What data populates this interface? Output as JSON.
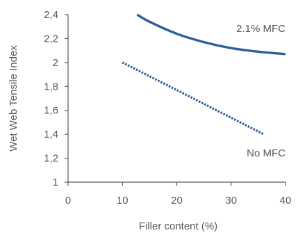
{
  "chart_data": {
    "type": "line",
    "xlabel": "Filler content (%)",
    "ylabel": "Wet Web Tensile Index",
    "xlim": [
      0,
      40
    ],
    "ylim": [
      1,
      2.4
    ],
    "x_ticks": [
      0,
      10,
      20,
      30,
      40
    ],
    "y_ticks": [
      1,
      1.2,
      1.4,
      1.6,
      1.8,
      2,
      2.2,
      2.4
    ],
    "x_tick_labels": [
      "0",
      "10",
      "20",
      "30",
      "40"
    ],
    "y_tick_labels": [
      "1",
      "1,2",
      "1,4",
      "1,6",
      "1,8",
      "2",
      "2,2",
      "2,4"
    ],
    "grid": false,
    "series": [
      {
        "name": "2.1% MFC",
        "style": "solid",
        "color": "#2E5F97",
        "x": [
          12.7,
          15,
          20,
          25,
          30,
          35,
          40
        ],
        "y": [
          2.4,
          2.34,
          2.24,
          2.17,
          2.12,
          2.09,
          2.07
        ]
      },
      {
        "name": "No MFC",
        "style": "dotted",
        "color": "#2E5F97",
        "x": [
          10,
          36
        ],
        "y": [
          2.0,
          1.4
        ]
      }
    ]
  }
}
